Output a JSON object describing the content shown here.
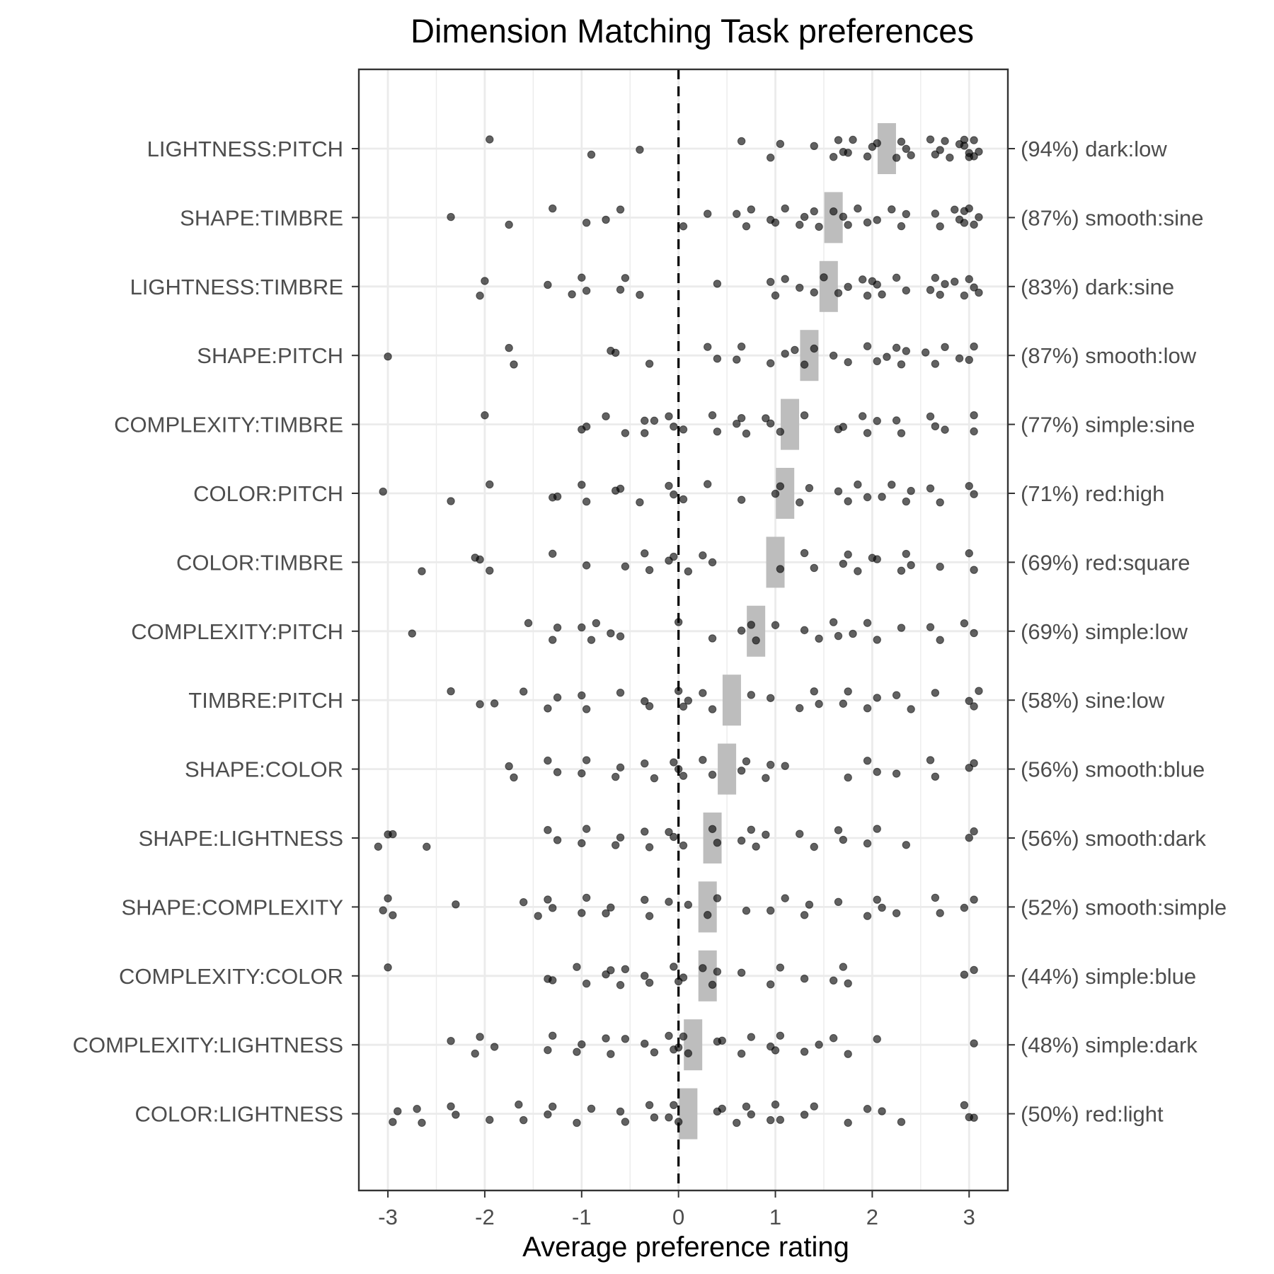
{
  "chart_data": {
    "type": "scatter",
    "title": "Dimension Matching Task preferences",
    "xlabel": "Average preference rating",
    "ylabel": "",
    "xlim": [
      -3.3,
      3.4
    ],
    "x_ticks": [
      -3,
      -2,
      -1,
      0,
      1,
      2,
      3
    ],
    "x_tick_labels": [
      "-3",
      "-2",
      "-1",
      "0",
      "1",
      "2",
      "3"
    ],
    "reference_line_x": 0,
    "grid": true,
    "legend": "none",
    "colors": {
      "point": "#000000",
      "mean_bar": "#bdbdbd",
      "reference_line": "#000000",
      "grid": "#ebebeb",
      "axis_text": "#4d4d4d"
    },
    "categories": [
      {
        "label": "LIGHTNESS:PITCH",
        "right_label": "(94%) dark:low",
        "mean": 2.15,
        "points": [
          -1.95,
          -0.9,
          -0.4,
          0.65,
          0.95,
          1.05,
          1.4,
          1.6,
          1.65,
          1.7,
          1.75,
          1.8,
          1.95,
          2.0,
          2.05,
          2.25,
          2.3,
          2.35,
          2.4,
          2.6,
          2.65,
          2.7,
          2.75,
          2.8,
          2.9,
          2.95,
          3.0,
          3.05,
          3.1,
          3.0,
          2.95,
          3.05
        ]
      },
      {
        "label": "SHAPE:TIMBRE",
        "right_label": "(87%) smooth:sine",
        "mean": 1.6,
        "points": [
          -2.35,
          -1.75,
          -1.3,
          -0.95,
          -0.75,
          -0.6,
          0.05,
          0.3,
          0.6,
          0.7,
          0.75,
          0.95,
          1.0,
          1.1,
          1.25,
          1.3,
          1.4,
          1.45,
          1.6,
          1.7,
          1.75,
          1.85,
          1.95,
          2.05,
          2.2,
          2.3,
          2.35,
          2.65,
          2.7,
          2.85,
          2.9,
          2.95,
          3.0,
          3.05,
          3.1,
          2.95
        ]
      },
      {
        "label": "LIGHTNESS:TIMBRE",
        "right_label": "(83%) dark:sine",
        "mean": 1.55,
        "points": [
          -2.05,
          -2.0,
          -1.35,
          -1.1,
          -1.0,
          -0.95,
          -0.6,
          -0.55,
          -0.4,
          0.4,
          0.95,
          1.0,
          1.1,
          1.25,
          1.4,
          1.5,
          1.65,
          1.75,
          1.9,
          1.95,
          2.0,
          2.05,
          2.1,
          2.25,
          2.35,
          2.6,
          2.65,
          2.7,
          2.75,
          2.85,
          2.95,
          3.0,
          3.05,
          3.1
        ]
      },
      {
        "label": "SHAPE:PITCH",
        "right_label": "(87%) smooth:low",
        "mean": 1.35,
        "points": [
          -3.0,
          -1.75,
          -1.7,
          -0.7,
          -0.65,
          -0.3,
          0.3,
          0.4,
          0.6,
          0.65,
          0.95,
          1.1,
          1.2,
          1.3,
          1.4,
          1.6,
          1.75,
          1.95,
          2.05,
          2.15,
          2.25,
          2.3,
          2.35,
          2.55,
          2.65,
          2.75,
          2.9,
          3.0,
          3.05
        ]
      },
      {
        "label": "COMPLEXITY:TIMBRE",
        "right_label": "(77%) simple:sine",
        "mean": 1.15,
        "points": [
          -2.0,
          -1.0,
          -0.95,
          -0.75,
          -0.55,
          -0.35,
          -0.25,
          -0.35,
          -0.1,
          -0.05,
          0.05,
          0.35,
          0.4,
          0.6,
          0.65,
          0.7,
          0.9,
          0.95,
          1.05,
          1.3,
          1.65,
          1.7,
          1.9,
          1.95,
          2.05,
          2.25,
          2.3,
          2.6,
          2.65,
          2.75,
          3.05,
          3.05
        ]
      },
      {
        "label": "COLOR:PITCH",
        "right_label": "(71%) red:high",
        "mean": 1.1,
        "points": [
          -3.05,
          -2.35,
          -1.95,
          -1.3,
          -1.25,
          -1.0,
          -0.95,
          -0.65,
          -0.6,
          -0.4,
          -0.1,
          -0.05,
          0.05,
          0.3,
          0.65,
          1.0,
          1.05,
          1.25,
          1.35,
          1.65,
          1.75,
          1.85,
          1.95,
          2.1,
          2.2,
          2.35,
          2.4,
          2.6,
          2.7,
          3.0,
          3.05
        ]
      },
      {
        "label": "COLOR:TIMBRE",
        "right_label": "(69%) red:square",
        "mean": 1.0,
        "points": [
          -2.65,
          -2.1,
          -2.05,
          -1.95,
          -1.3,
          -0.95,
          -0.55,
          -0.35,
          -0.3,
          -0.1,
          -0.05,
          0.1,
          0.25,
          0.35,
          1.05,
          1.3,
          1.4,
          1.7,
          1.75,
          1.85,
          2.0,
          2.05,
          2.3,
          2.35,
          2.4,
          2.7,
          3.0,
          3.05
        ]
      },
      {
        "label": "COMPLEXITY:PITCH",
        "right_label": "(69%) simple:low",
        "mean": 0.8,
        "points": [
          -2.75,
          -1.55,
          -1.3,
          -1.25,
          -1.0,
          -0.9,
          -0.85,
          -0.7,
          -0.6,
          0.0,
          0.35,
          0.65,
          0.75,
          0.8,
          1.0,
          1.3,
          1.45,
          1.6,
          1.65,
          1.8,
          1.95,
          2.05,
          2.3,
          2.6,
          2.7,
          2.95,
          3.05
        ]
      },
      {
        "label": "TIMBRE:PITCH",
        "right_label": "(58%) sine:low",
        "mean": 0.55,
        "points": [
          -2.35,
          -2.05,
          -1.9,
          -1.6,
          -1.35,
          -1.25,
          -1.0,
          -0.95,
          -0.6,
          -0.35,
          -0.3,
          0.0,
          0.05,
          0.1,
          0.25,
          0.35,
          0.75,
          0.95,
          1.25,
          1.4,
          1.45,
          1.7,
          1.75,
          1.95,
          2.05,
          2.25,
          2.4,
          2.65,
          3.0,
          3.05,
          3.1
        ]
      },
      {
        "label": "SHAPE:COLOR",
        "right_label": "(56%) smooth:blue",
        "mean": 0.5,
        "points": [
          -1.75,
          -1.7,
          -1.35,
          -1.25,
          -1.0,
          -0.95,
          -0.65,
          -0.6,
          -0.35,
          -0.25,
          -0.05,
          0.0,
          0.05,
          0.25,
          0.35,
          0.65,
          0.7,
          0.9,
          0.95,
          1.1,
          1.75,
          1.95,
          2.05,
          2.25,
          2.6,
          2.65,
          3.0,
          3.05
        ]
      },
      {
        "label": "SHAPE:LIGHTNESS",
        "right_label": "(56%) smooth:dark",
        "mean": 0.35,
        "points": [
          -3.1,
          -3.0,
          -2.95,
          -2.6,
          -1.35,
          -1.25,
          -1.0,
          -0.95,
          -0.65,
          -0.6,
          -0.35,
          -0.3,
          -0.1,
          -0.05,
          0.05,
          0.35,
          0.4,
          0.65,
          0.75,
          0.8,
          0.9,
          1.25,
          1.4,
          1.65,
          1.7,
          1.95,
          2.05,
          2.35,
          3.0,
          3.05
        ]
      },
      {
        "label": "SHAPE:COMPLEXITY",
        "right_label": "(52%) smooth:simple",
        "mean": 0.3,
        "points": [
          -3.05,
          -3.0,
          -2.95,
          -2.3,
          -1.6,
          -1.45,
          -1.35,
          -1.3,
          -1.0,
          -0.95,
          -0.75,
          -0.7,
          -0.35,
          -0.3,
          -0.1,
          0.1,
          0.3,
          0.4,
          0.7,
          0.95,
          1.1,
          1.3,
          1.35,
          1.65,
          1.95,
          2.05,
          2.1,
          2.25,
          2.65,
          2.7,
          2.95,
          3.05
        ]
      },
      {
        "label": "COMPLEXITY:COLOR",
        "right_label": "(44%) simple:blue",
        "mean": 0.3,
        "points": [
          -3.0,
          -1.35,
          -1.3,
          -1.05,
          -0.95,
          -0.75,
          -0.7,
          -0.6,
          -0.55,
          -0.35,
          -0.3,
          -0.05,
          0.0,
          0.05,
          0.25,
          0.35,
          0.4,
          0.65,
          0.95,
          1.05,
          1.3,
          1.6,
          1.7,
          1.75,
          2.95,
          3.05
        ]
      },
      {
        "label": "COMPLEXITY:LIGHTNESS",
        "right_label": "(48%) simple:dark",
        "mean": 0.15,
        "points": [
          -2.35,
          -2.1,
          -2.05,
          -1.9,
          -1.35,
          -1.3,
          -1.05,
          -1.0,
          -0.75,
          -0.7,
          -0.55,
          -0.35,
          -0.25,
          -0.1,
          -0.05,
          0.0,
          0.05,
          0.1,
          0.4,
          0.45,
          0.65,
          0.75,
          0.95,
          1.0,
          1.05,
          1.3,
          1.45,
          1.6,
          1.75,
          2.05,
          3.05
        ]
      },
      {
        "label": "COLOR:LIGHTNESS",
        "right_label": "(50%) red:light",
        "mean": 0.1,
        "points": [
          -2.95,
          -2.9,
          -2.7,
          -2.65,
          -2.35,
          -2.3,
          -1.95,
          -1.65,
          -1.6,
          -1.35,
          -1.3,
          -1.05,
          -0.9,
          -0.6,
          -0.55,
          -0.3,
          -0.25,
          -0.1,
          -0.05,
          0.0,
          0.4,
          0.45,
          0.6,
          0.7,
          0.75,
          0.95,
          1.0,
          1.05,
          1.3,
          1.4,
          1.75,
          1.95,
          2.1,
          2.3,
          2.95,
          3.0,
          3.05
        ]
      }
    ]
  }
}
